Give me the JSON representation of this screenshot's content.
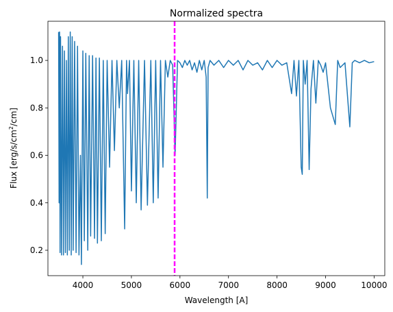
{
  "chart_data": {
    "type": "line",
    "title": "Normalized spectra",
    "xlabel": "Wavelength [A]",
    "ylabel_parts": [
      "Flux [erg/s/cm",
      "2",
      "/cm]"
    ],
    "xlim": [
      3280,
      10220
    ],
    "ylim": [
      0.093,
      1.165
    ],
    "xticks": [
      4000,
      5000,
      6000,
      7000,
      8000,
      9000,
      10000
    ],
    "yticks": [
      0.2,
      0.4,
      0.6,
      0.8,
      1.0
    ],
    "ytick_labels": [
      "0.2",
      "0.4",
      "0.6",
      "0.8",
      "1.0"
    ],
    "grid": false,
    "series_color": "#1f77b4",
    "series": [
      {
        "x": [
          3500,
          3510,
          3520,
          3530,
          3540,
          3560,
          3580,
          3600,
          3620,
          3640,
          3660,
          3680,
          3700,
          3720,
          3740,
          3760,
          3780,
          3800,
          3830,
          3860,
          3890,
          3920,
          3950,
          3970,
          4000,
          4030,
          4060,
          4101,
          4130,
          4160,
          4200,
          4240,
          4270,
          4300,
          4340,
          4380,
          4420,
          4460,
          4500,
          4550,
          4600,
          4650,
          4700,
          4750,
          4800,
          4861,
          4900,
          4920,
          4960,
          5000,
          5050,
          5100,
          5150,
          5200,
          5270,
          5330,
          5400,
          5450,
          5500,
          5550,
          5600,
          5650,
          5700,
          5750,
          5800,
          5850,
          5900,
          5950,
          6000,
          6050,
          6100,
          6150,
          6200,
          6250,
          6300,
          6350,
          6400,
          6450,
          6500,
          6540,
          6563,
          6580,
          6620,
          6700,
          6800,
          6900,
          7000,
          7100,
          7200,
          7300,
          7400,
          7500,
          7600,
          7700,
          7800,
          7900,
          8000,
          8100,
          8200,
          8300,
          8350,
          8400,
          8450,
          8498,
          8520,
          8542,
          8580,
          8620,
          8662,
          8700,
          8750,
          8800,
          8850,
          8900,
          8950,
          9000,
          9100,
          9200,
          9250,
          9300,
          9400,
          9500,
          9550,
          9600,
          9700,
          9800,
          9900,
          10000
        ],
        "y": [
          1.12,
          0.4,
          1.12,
          0.19,
          1.1,
          0.18,
          1.06,
          0.18,
          1.04,
          0.19,
          1.0,
          0.18,
          1.1,
          0.2,
          1.12,
          0.18,
          1.1,
          0.2,
          1.08,
          0.19,
          1.06,
          0.18,
          0.6,
          0.14,
          1.04,
          0.24,
          1.03,
          0.2,
          1.02,
          0.26,
          1.02,
          0.25,
          1.01,
          0.23,
          1.01,
          0.24,
          1.0,
          0.27,
          1.0,
          0.55,
          1.0,
          0.62,
          1.0,
          0.8,
          1.0,
          0.29,
          1.0,
          0.86,
          1.0,
          0.45,
          1.0,
          0.4,
          1.0,
          0.37,
          1.0,
          0.39,
          1.0,
          0.4,
          1.0,
          0.42,
          1.0,
          0.55,
          1.0,
          0.93,
          1.0,
          0.98,
          0.6,
          1.0,
          0.99,
          0.97,
          1.0,
          0.98,
          1.0,
          0.96,
          0.99,
          0.95,
          1.0,
          0.96,
          1.0,
          0.93,
          0.42,
          0.97,
          1.0,
          0.98,
          1.0,
          0.97,
          1.0,
          0.98,
          1.0,
          0.96,
          1.0,
          0.98,
          0.99,
          0.96,
          1.0,
          0.97,
          1.0,
          0.98,
          0.99,
          0.86,
          1.0,
          0.85,
          1.0,
          0.55,
          0.52,
          1.0,
          0.9,
          1.0,
          0.54,
          0.88,
          1.0,
          0.82,
          1.0,
          0.98,
          0.95,
          0.99,
          0.8,
          0.73,
          1.0,
          0.97,
          0.99,
          0.72,
          0.99,
          1.0,
          0.99,
          1.0,
          0.99,
          0.995
        ]
      }
    ],
    "vline": {
      "x": 5890,
      "color": "#ff00ff",
      "style": "dashed"
    }
  }
}
